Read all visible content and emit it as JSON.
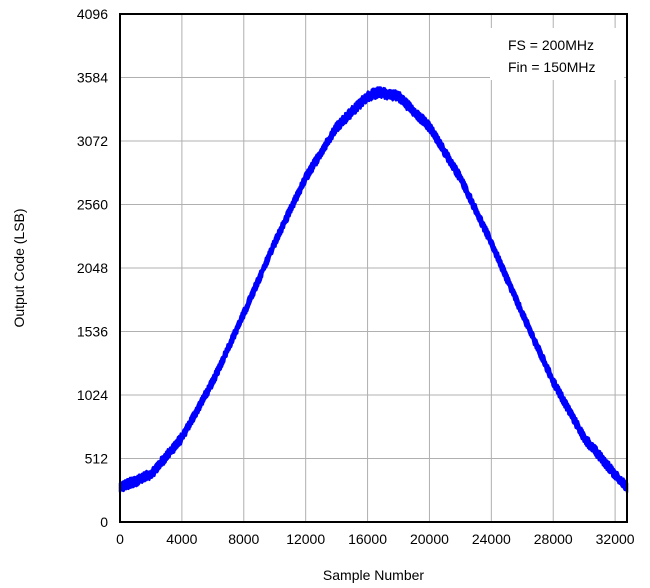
{
  "chart_data": {
    "type": "line",
    "title": "",
    "xlabel": "Sample Number",
    "ylabel": "Output Code (LSB)",
    "xlim": [
      0,
      32768
    ],
    "ylim": [
      0,
      4096
    ],
    "x_ticks": [
      0,
      4000,
      8000,
      12000,
      16000,
      20000,
      24000,
      28000,
      32000
    ],
    "y_ticks": [
      0,
      512,
      1024,
      1536,
      2048,
      2560,
      3072,
      3584,
      4096
    ],
    "grid": true,
    "annotations": [
      "FS = 200MHz",
      "Fin = 150MHz"
    ],
    "annotation_position": "top-right",
    "series": [
      {
        "color": "#0000ff",
        "noise_band_lsb": 60,
        "x": [
          0,
          2000,
          4000,
          6000,
          8000,
          10000,
          12000,
          14000,
          16000,
          16700,
          18000,
          20000,
          22000,
          24000,
          26000,
          28000,
          30000,
          32000,
          32768
        ],
        "y": [
          278,
          383,
          679,
          1132,
          1680,
          2251,
          2775,
          3186,
          3433,
          3464,
          3433,
          3186,
          2775,
          2251,
          1680,
          1132,
          679,
          383,
          278
        ]
      }
    ]
  }
}
